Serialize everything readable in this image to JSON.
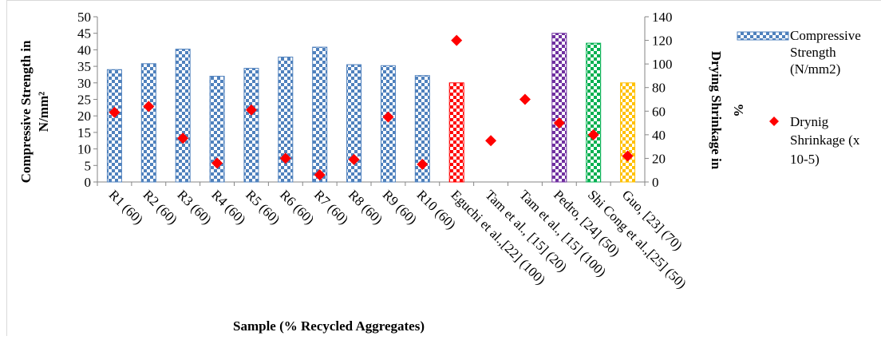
{
  "chart_data": {
    "type": "bar",
    "title": "",
    "xlabel": "Sample (% Recycled Aggregates)",
    "ylabel_left": [
      "Compressive Strength in",
      "N/mm²"
    ],
    "ylabel_right": [
      "Drying Shrinkage in",
      "%"
    ],
    "ylim_left": [
      0,
      50
    ],
    "yticks_left": [
      0,
      5,
      10,
      15,
      20,
      25,
      30,
      35,
      40,
      45,
      50
    ],
    "ylim_right": [
      0,
      140
    ],
    "yticks_right": [
      0,
      20,
      40,
      60,
      80,
      100,
      120,
      140
    ],
    "grid": false,
    "legend_position": "right",
    "categories": [
      "R1 (60)",
      "R2 (60)",
      "R3 (60)",
      "R4 (60)",
      "R5 (60)",
      "R6 (60)",
      "R7 (60)",
      "R8 (60)",
      "R9 (60)",
      "R10 (60)",
      "Eguchi et al.,[22] (100)",
      "Tam et al., [15] (20)",
      "Tam et al., [15] (100)",
      "Pedro, [24] (50)",
      "Shi Cong et al.,[25] (50)",
      "Guo, [23] (70)"
    ],
    "series": [
      {
        "name": "Compressive Strength (N/mm2)",
        "legend_lines": [
          "Compressive",
          "Strength",
          "(N/mm2)"
        ],
        "type": "bar",
        "axis": "left",
        "values": [
          34,
          35.8,
          40.2,
          32,
          34.4,
          37.8,
          40.8,
          35.5,
          35.2,
          32.2,
          30,
          null,
          null,
          45,
          42,
          30
        ],
        "bar_colors": [
          "#4f81bd",
          "#4f81bd",
          "#4f81bd",
          "#4f81bd",
          "#4f81bd",
          "#4f81bd",
          "#4f81bd",
          "#4f81bd",
          "#4f81bd",
          "#4f81bd",
          "#ff0000",
          null,
          null,
          "#7030a0",
          "#00b050",
          "#ffc000"
        ]
      },
      {
        "name": "Drynig Shrinkage (x 10-5)",
        "legend_lines": [
          "Drynig",
          "Shrinkage (x",
          "10-5)"
        ],
        "type": "scatter",
        "marker": "diamond",
        "color": "#ff0000",
        "axis": "right",
        "values": [
          59,
          64,
          37,
          16,
          61,
          20,
          6,
          19,
          55,
          15,
          120,
          35,
          70,
          50,
          40,
          22
        ]
      }
    ]
  }
}
